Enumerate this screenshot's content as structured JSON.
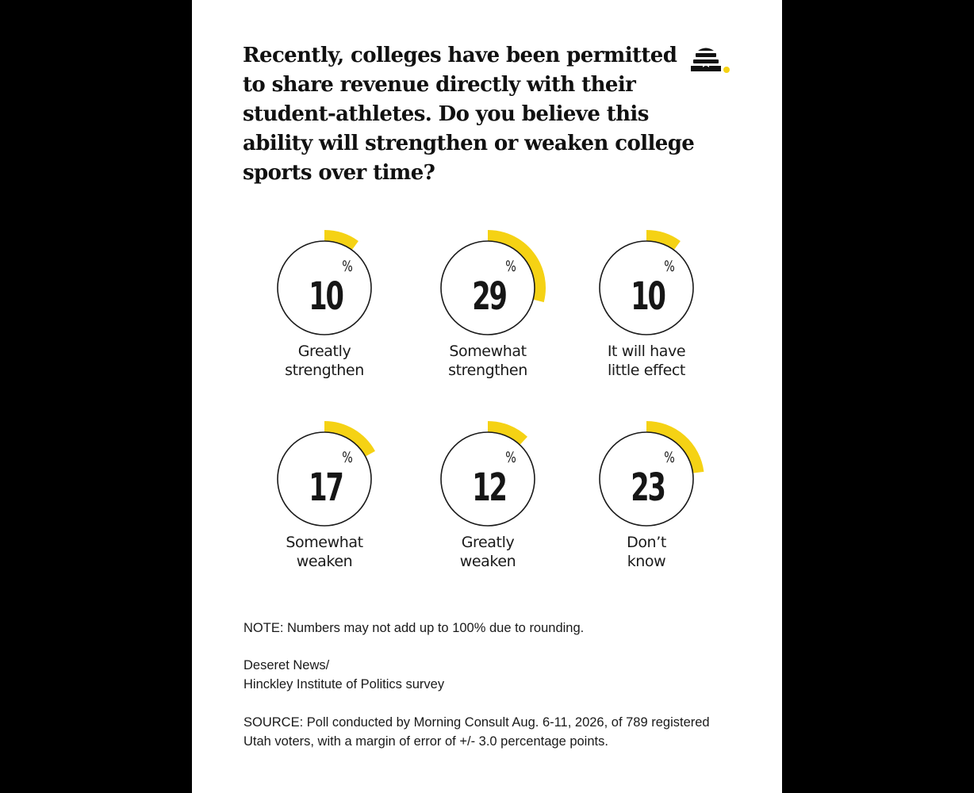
{
  "headline": "Recently, colleges have been permitted to share revenue directly with their student-athletes. Do you believe this ability will strengthen or weaken college sports over time?",
  "colors": {
    "accent": "#f5d214",
    "ring": "#1a1a1a",
    "text": "#161616",
    "background": "#ffffff"
  },
  "logo": {
    "icon": "beehive-logo-icon"
  },
  "chart_data": {
    "type": "pie",
    "title": "Recently, colleges have been permitted to share revenue directly with their student-athletes. Do you believe this ability will strengthen or weaken college sports over time?",
    "unit": "%",
    "items": [
      {
        "value": 10,
        "label_lines": [
          "Greatly",
          "strengthen"
        ]
      },
      {
        "value": 29,
        "label_lines": [
          "Somewhat",
          "strengthen"
        ]
      },
      {
        "value": 10,
        "label_lines": [
          "It will have",
          "little effect"
        ]
      },
      {
        "value": 17,
        "label_lines": [
          "Somewhat",
          "weaken"
        ]
      },
      {
        "value": 12,
        "label_lines": [
          "Greatly",
          "weaken"
        ]
      },
      {
        "value": 23,
        "label_lines": [
          "Don’t",
          "know"
        ]
      }
    ]
  },
  "note": "NOTE: Numbers may not add up to 100% due to rounding.",
  "credit_lines": [
    "Deseret News/",
    "Hinckley Institute of Politics survey"
  ],
  "source": "SOURCE: Poll conducted by Morning Consult Aug. 6-11, 2026, of 789 registered Utah voters, with a margin of error of +/- 3.0 percentage points."
}
